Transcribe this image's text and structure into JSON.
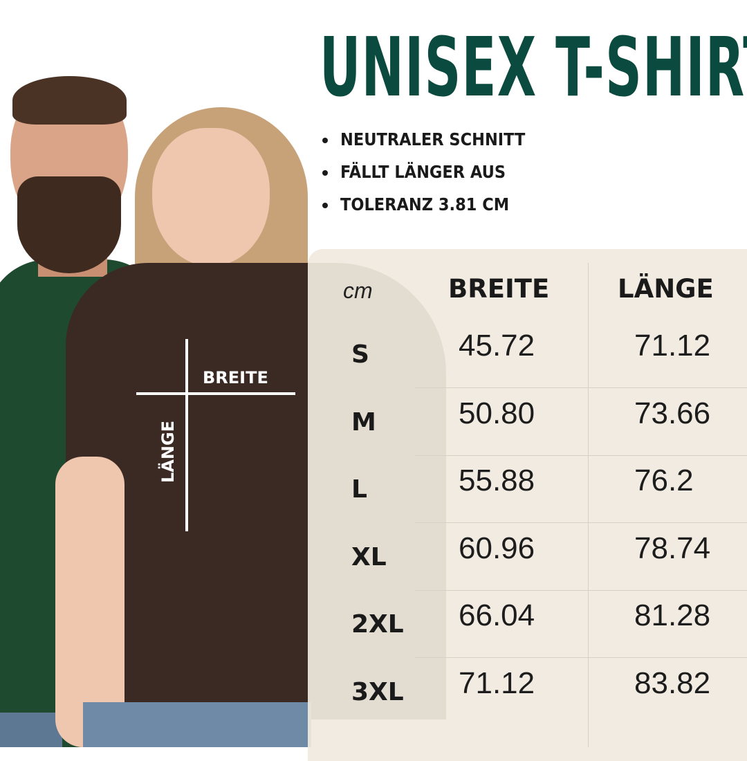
{
  "title": "UNISEX T-SHIRT",
  "features": [
    "NEUTRALER SCHNITT",
    "FÄLLT LÄNGER AUS",
    "TOLERANZ 3.81 CM"
  ],
  "diagram": {
    "width_label": "BREITE",
    "length_label": "LÄNGE"
  },
  "table": {
    "unit": "cm",
    "headers": [
      "BREITE",
      "LÄNGE"
    ],
    "rows": [
      {
        "size": "S",
        "breite": "45.72",
        "laenge": "71.12"
      },
      {
        "size": "M",
        "breite": "50.80",
        "laenge": "73.66"
      },
      {
        "size": "L",
        "breite": "55.88",
        "laenge": "76.2"
      },
      {
        "size": "XL",
        "breite": "60.96",
        "laenge": "78.74"
      },
      {
        "size": "2XL",
        "breite": "66.04",
        "laenge": "81.28"
      },
      {
        "size": "3XL",
        "breite": "71.12",
        "laenge": "83.82"
      }
    ]
  },
  "colors": {
    "title": "#0b4a3f",
    "panel": "#f0eadf",
    "shirt_green": "#1e4a2f",
    "shirt_brown": "#3b2a24"
  }
}
